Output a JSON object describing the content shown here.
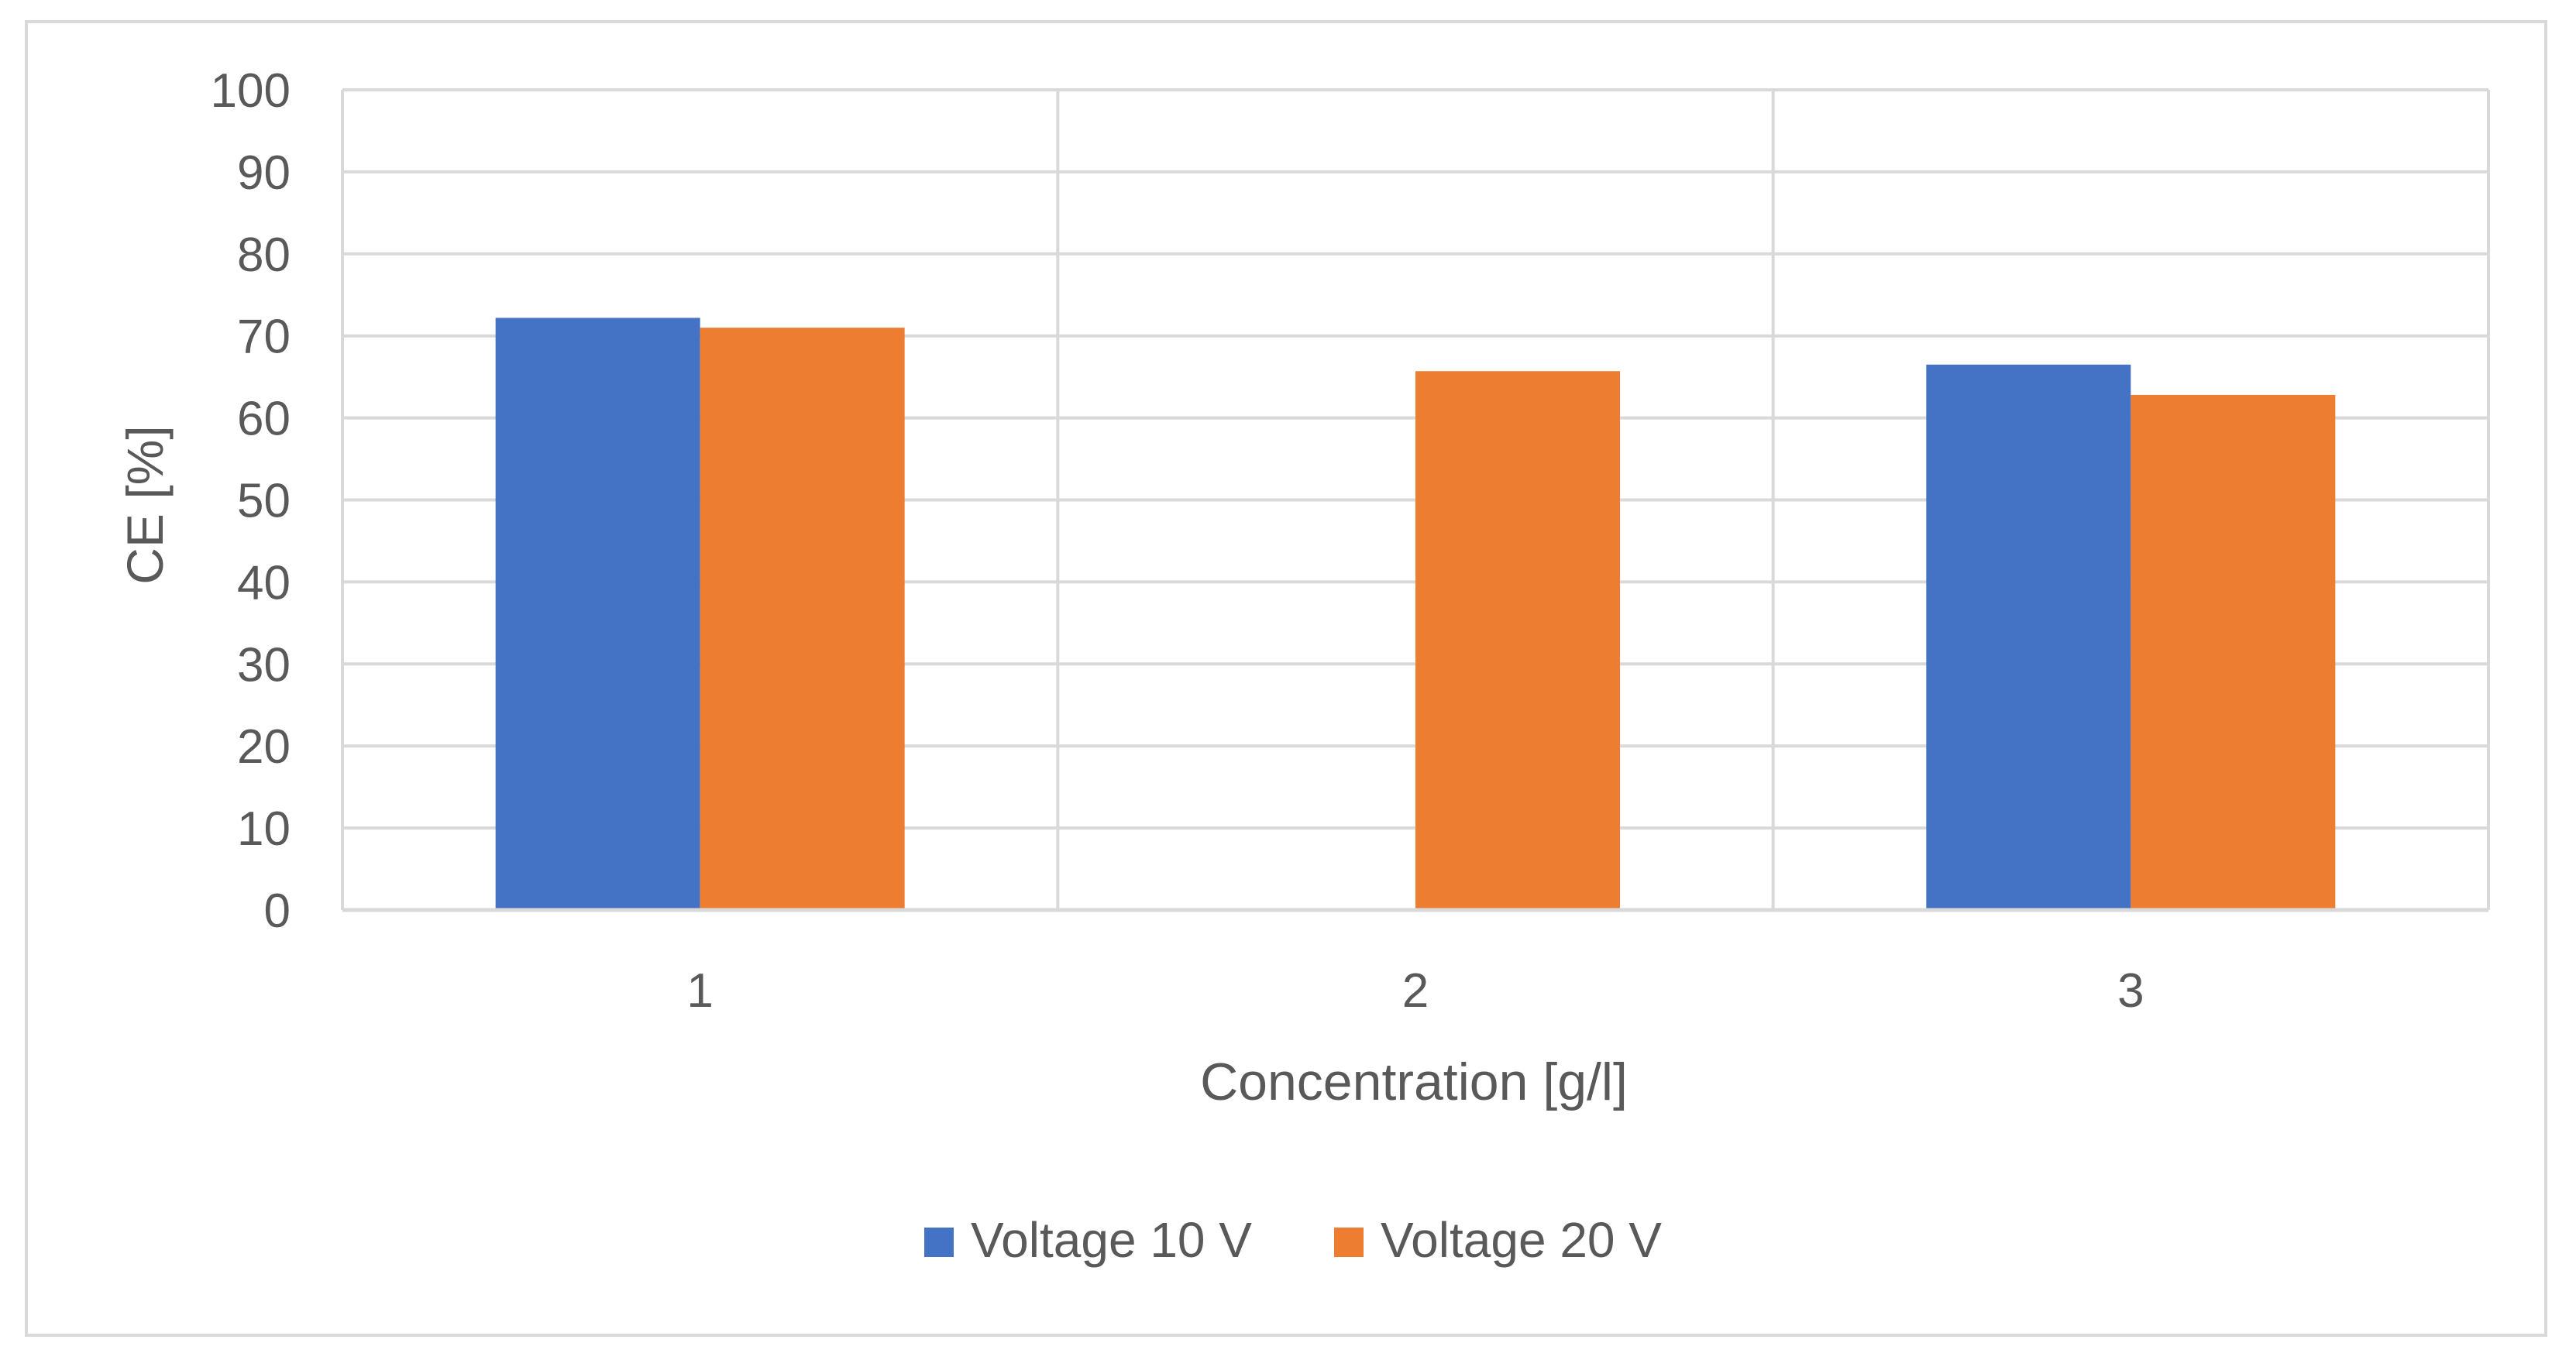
{
  "chart_data": {
    "type": "bar",
    "title": "",
    "xlabel": "Concentration [g/l]",
    "ylabel": "CE [%]",
    "categories": [
      "1",
      "2",
      "3"
    ],
    "ylim": [
      0,
      100
    ],
    "yticks": [
      0,
      10,
      20,
      30,
      40,
      50,
      60,
      70,
      80,
      90,
      100
    ],
    "ytick_labels": [
      "0",
      "10",
      "20",
      "30",
      "40",
      "50",
      "60",
      "70",
      "80",
      "90",
      "100"
    ],
    "grid": true,
    "legend_position": "bottom",
    "series": [
      {
        "name": "Voltage 10 V",
        "color": "#4472c4",
        "values": [
          72.2,
          null,
          66.5
        ]
      },
      {
        "name": "Voltage 20 V",
        "color": "#ed7d31",
        "values": [
          71.0,
          65.7,
          62.8
        ]
      }
    ]
  }
}
